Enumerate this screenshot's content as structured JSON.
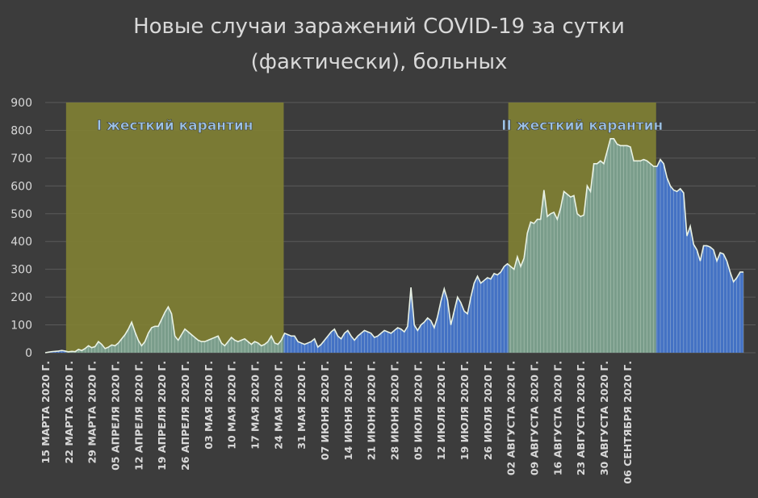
{
  "chart_data": {
    "type": "area",
    "title_line1": "Новые случаи заражений COVID-19 за сутки",
    "title_line2": "(фактически), больных",
    "ylim": [
      0,
      900
    ],
    "y_ticks": [
      0,
      100,
      200,
      300,
      400,
      500,
      600,
      700,
      800,
      900
    ],
    "grid": true,
    "x_tick_labels": [
      "15 МАРТА 2020 Г.",
      "22 МАРТА 2020 Г.",
      "29 МАРТА 2020 Г.",
      "05 АПРЕЛЯ 2020 Г.",
      "12 АПРЕЛЯ 2020 Г.",
      "19 АПРЕЛЯ 2020 Г.",
      "26 АПРЕЛЯ 2020 Г.",
      "03 МАЯ 2020 Г.",
      "10 МАЯ 2020 Г.",
      "17 МАЯ 2020 Г.",
      "24 МАЯ 2020 Г.",
      "31 МАЯ 2020 Г.",
      "07 ИЮНЯ 2020 Г.",
      "14 ИЮНЯ 2020 Г.",
      "21 ИЮНЯ 2020 Г.",
      "28 ИЮНЯ 2020 Г.",
      "05 ИЮЛЯ 2020 Г.",
      "12 ИЮЛЯ 2020 Г.",
      "19 ИЮЛЯ 2020 Г.",
      "26 ИЮЛЯ 2020 Г.",
      "02 АВГУСТА 2020 Г.",
      "09 АВГУСТА 2020 Г.",
      "16 АВГУСТА 2020 Г.",
      "23 АВГУСТА 2020 Г.",
      "30 АВГУСТА 2020 Г.",
      "06 СЕНТЯБРЯ 2020 Г."
    ],
    "x_start": "2020-03-15",
    "x_end": "2020-09-06",
    "values": [
      0,
      2,
      4,
      5,
      6,
      8,
      6,
      3,
      5,
      4,
      12,
      8,
      15,
      25,
      18,
      22,
      40,
      30,
      15,
      20,
      28,
      25,
      35,
      50,
      65,
      85,
      110,
      75,
      45,
      25,
      40,
      70,
      90,
      95,
      95,
      120,
      145,
      165,
      140,
      60,
      45,
      65,
      85,
      75,
      65,
      55,
      45,
      40,
      40,
      45,
      50,
      55,
      60,
      35,
      25,
      40,
      55,
      45,
      40,
      45,
      50,
      40,
      30,
      40,
      35,
      25,
      30,
      40,
      60,
      35,
      30,
      45,
      70,
      65,
      60,
      60,
      40,
      35,
      30,
      35,
      40,
      50,
      20,
      30,
      45,
      60,
      75,
      85,
      60,
      50,
      70,
      80,
      60,
      45,
      60,
      70,
      80,
      75,
      70,
      55,
      60,
      70,
      80,
      75,
      70,
      80,
      90,
      85,
      75,
      95,
      235,
      100,
      80,
      100,
      110,
      125,
      115,
      90,
      130,
      185,
      230,
      190,
      100,
      150,
      200,
      180,
      150,
      140,
      200,
      250,
      275,
      250,
      260,
      270,
      265,
      285,
      280,
      290,
      310,
      320,
      310,
      300,
      345,
      310,
      340,
      430,
      470,
      465,
      480,
      480,
      585,
      490,
      500,
      505,
      480,
      520,
      580,
      570,
      560,
      565,
      500,
      490,
      495,
      600,
      580,
      680,
      680,
      690,
      680,
      725,
      770,
      770,
      750,
      745,
      745,
      745,
      740,
      690,
      690,
      690,
      695,
      690,
      680,
      670,
      670,
      695,
      680,
      630,
      600,
      585,
      580,
      590,
      575,
      420,
      455,
      390,
      370,
      330,
      385,
      385,
      380,
      370,
      330,
      360,
      355,
      330,
      290,
      255,
      270,
      290,
      290
    ],
    "shaded_periods": [
      {
        "label": "I жесткий карантин",
        "from_index": 7,
        "to_index": 71
      },
      {
        "label": "II жесткий карантин",
        "from_index": 140,
        "to_index": 183
      }
    ],
    "colors": {
      "background": "#3c3c3c",
      "area_fill": "#4472c4",
      "shaded_fill": "#818133",
      "shaded_area": "#7a9d8b",
      "outline": "#e9f2e5",
      "label_text": "#9dc3e6",
      "gridline": "#5a5a5a",
      "axis_text": "#d9d9d9"
    }
  }
}
